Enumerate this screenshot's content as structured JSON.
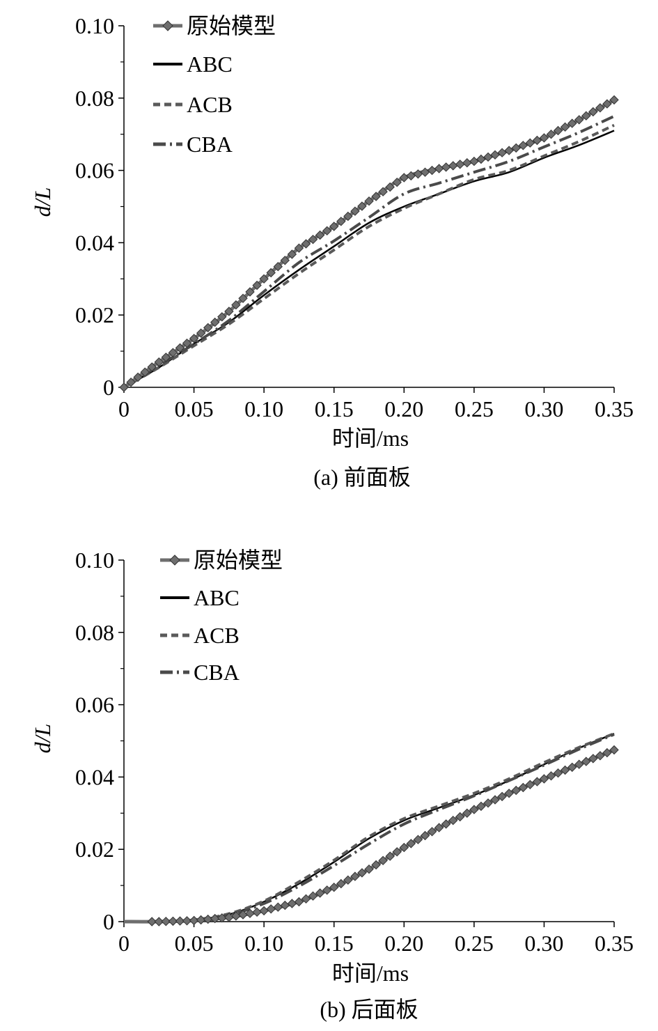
{
  "chart_data": [
    {
      "type": "line",
      "title": "",
      "caption": "(a) 前面板",
      "xlabel": "时间/ms",
      "ylabel": "d/L",
      "xlim": [
        0,
        0.35
      ],
      "ylim": [
        0,
        0.1
      ],
      "x_ticks": [
        "0",
        "0.05",
        "0.10",
        "0.15",
        "0.20",
        "0.25",
        "0.30",
        "0.35"
      ],
      "y_ticks": [
        "0",
        "0.02",
        "0.04",
        "0.06",
        "0.08",
        "0.10"
      ],
      "legend_position": "top-left",
      "grid": false,
      "series": [
        {
          "name": "原始模型",
          "style": "diamond-line",
          "color": "#6e6e6e",
          "x": [
            0,
            0.025,
            0.05,
            0.075,
            0.1,
            0.125,
            0.15,
            0.175,
            0.2,
            0.225,
            0.25,
            0.275,
            0.3,
            0.325,
            0.35
          ],
          "y": [
            0,
            0.007,
            0.0135,
            0.021,
            0.03,
            0.0385,
            0.0445,
            0.0515,
            0.058,
            0.0605,
            0.0625,
            0.0655,
            0.069,
            0.074,
            0.0795
          ]
        },
        {
          "name": "ABC",
          "style": "solid",
          "color": "#000000",
          "x": [
            0,
            0.025,
            0.05,
            0.075,
            0.1,
            0.125,
            0.15,
            0.175,
            0.2,
            0.225,
            0.25,
            0.275,
            0.3,
            0.325,
            0.35
          ],
          "y": [
            0,
            0.0055,
            0.012,
            0.018,
            0.0255,
            0.0325,
            0.039,
            0.0455,
            0.05,
            0.0535,
            0.057,
            0.0595,
            0.0635,
            0.067,
            0.071
          ]
        },
        {
          "name": "ACB",
          "style": "dashed",
          "color": "#5a5a5a",
          "x": [
            0,
            0.025,
            0.05,
            0.075,
            0.1,
            0.125,
            0.15,
            0.175,
            0.2,
            0.225,
            0.25,
            0.275,
            0.3,
            0.325,
            0.35
          ],
          "y": [
            0,
            0.0055,
            0.0115,
            0.0175,
            0.0245,
            0.0315,
            0.038,
            0.0445,
            0.0495,
            0.0535,
            0.0575,
            0.06,
            0.064,
            0.068,
            0.0725
          ]
        },
        {
          "name": "CBA",
          "style": "dashdot",
          "color": "#4a4a4a",
          "x": [
            0,
            0.025,
            0.05,
            0.075,
            0.1,
            0.125,
            0.15,
            0.175,
            0.2,
            0.225,
            0.25,
            0.275,
            0.3,
            0.325,
            0.35
          ],
          "y": [
            0,
            0.006,
            0.012,
            0.0185,
            0.0265,
            0.0345,
            0.0405,
            0.047,
            0.0535,
            0.0565,
            0.0595,
            0.0625,
            0.0665,
            0.0705,
            0.075
          ]
        }
      ]
    },
    {
      "type": "line",
      "title": "",
      "caption": "(b) 后面板",
      "xlabel": "时间/ms",
      "ylabel": "d/L",
      "xlim": [
        0,
        0.35
      ],
      "ylim": [
        0,
        0.1
      ],
      "x_ticks": [
        "0",
        "0.05",
        "0.10",
        "0.15",
        "0.20",
        "0.25",
        "0.30",
        "0.35"
      ],
      "y_ticks": [
        "0",
        "0.02",
        "0.04",
        "0.06",
        "0.08",
        "0.10"
      ],
      "legend_position": "top-left",
      "grid": false,
      "series": [
        {
          "name": "原始模型",
          "style": "diamond-line",
          "color": "#6e6e6e",
          "x": [
            0,
            0.025,
            0.05,
            0.075,
            0.1,
            0.125,
            0.15,
            0.175,
            0.2,
            0.225,
            0.25,
            0.275,
            0.3,
            0.325,
            0.35
          ],
          "y": [
            0,
            0,
            0.0003,
            0.0012,
            0.003,
            0.0055,
            0.0095,
            0.0145,
            0.0205,
            0.026,
            0.031,
            0.0355,
            0.0395,
            0.0435,
            0.0475
          ]
        },
        {
          "name": "ABC",
          "style": "solid",
          "color": "#000000",
          "x": [
            0,
            0.025,
            0.05,
            0.075,
            0.1,
            0.125,
            0.15,
            0.175,
            0.2,
            0.225,
            0.25,
            0.275,
            0.3,
            0.325,
            0.35
          ],
          "y": [
            0,
            0,
            0.0005,
            0.002,
            0.0055,
            0.0105,
            0.0165,
            0.023,
            0.028,
            0.0315,
            0.035,
            0.039,
            0.0435,
            0.048,
            0.052
          ]
        },
        {
          "name": "ACB",
          "style": "dashed",
          "color": "#5a5a5a",
          "x": [
            0,
            0.025,
            0.05,
            0.075,
            0.1,
            0.125,
            0.15,
            0.175,
            0.2,
            0.225,
            0.25,
            0.275,
            0.3,
            0.325,
            0.35
          ],
          "y": [
            0,
            0,
            0.0005,
            0.0022,
            0.0057,
            0.011,
            0.017,
            0.0235,
            0.0285,
            0.032,
            0.0355,
            0.0395,
            0.044,
            0.0482,
            0.052
          ]
        },
        {
          "name": "CBA",
          "style": "dashdot",
          "color": "#4a4a4a",
          "x": [
            0,
            0.025,
            0.05,
            0.075,
            0.1,
            0.125,
            0.15,
            0.175,
            0.2,
            0.225,
            0.25,
            0.275,
            0.3,
            0.325,
            0.35
          ],
          "y": [
            0,
            0,
            0.0004,
            0.0018,
            0.005,
            0.0098,
            0.0155,
            0.0215,
            0.027,
            0.031,
            0.0348,
            0.039,
            0.0433,
            0.0477,
            0.0518
          ]
        }
      ]
    }
  ]
}
